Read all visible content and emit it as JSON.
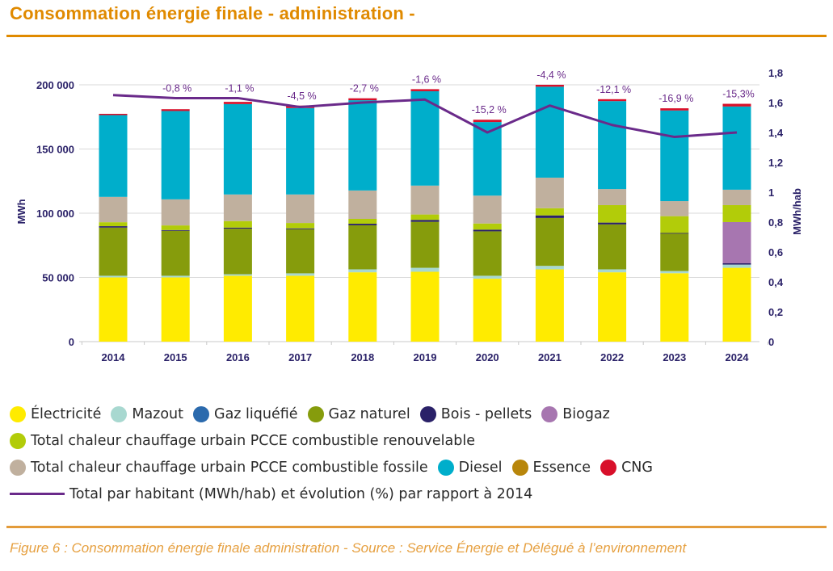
{
  "header": {
    "title": "Consommation énergie finale - administration -"
  },
  "caption": "Figure 6 : Consommation énergie finale administration - Source : Service Énergie et Délégué à l’environnement",
  "chart_data": {
    "type": "bar",
    "stacked": true,
    "title": "Consommation énergie finale - administration -",
    "xlabel": "",
    "ylabel": "MWh",
    "y2label": "MWh/hab",
    "ylim": [
      0,
      200000
    ],
    "y2lim": [
      0,
      1.8
    ],
    "yticks": [
      0,
      50000,
      100000,
      150000,
      200000
    ],
    "ytick_labels": [
      "0",
      "50 000",
      "100 000",
      "150 000",
      "200 000"
    ],
    "y2ticks": [
      0,
      0.2,
      0.4,
      0.6,
      0.8,
      1.0,
      1.2,
      1.4,
      1.6,
      1.8
    ],
    "y2tick_labels": [
      "0",
      "0,2",
      "0,4",
      "0,6",
      "0,8",
      "1",
      "1,2",
      "1,4",
      "1,6",
      "1,8"
    ],
    "grid": true,
    "legend_position": "bottom",
    "categories": [
      "2014",
      "2015",
      "2016",
      "2017",
      "2018",
      "2019",
      "2020",
      "2021",
      "2022",
      "2023",
      "2024"
    ],
    "series": [
      {
        "name": "Électricité",
        "color": "#ffeb00",
        "values": [
          50000,
          50000,
          51300,
          51300,
          54000,
          54400,
          49000,
          56300,
          54000,
          53300,
          57500
        ]
      },
      {
        "name": "Mazout",
        "color": "#a8d8d0",
        "values": [
          1300,
          1300,
          1200,
          1900,
          2300,
          3100,
          2300,
          2700,
          2300,
          1700,
          2500
        ]
      },
      {
        "name": "Gaz liquéfié",
        "color": "#2b6aad",
        "values": [
          0,
          0,
          0,
          0,
          0,
          0,
          0,
          0,
          0,
          0,
          0
        ]
      },
      {
        "name": "Gaz naturel",
        "color": "#869c0c",
        "values": [
          37500,
          35000,
          35500,
          34300,
          34300,
          35800,
          34600,
          37300,
          35000,
          29200,
          0
        ]
      },
      {
        "name": "Bois - pellets",
        "color": "#2a2168",
        "values": [
          1100,
          600,
          800,
          700,
          1200,
          1500,
          1300,
          2000,
          1400,
          400,
          1000
        ]
      },
      {
        "name": "Biogaz",
        "color": "#a776b0",
        "values": [
          0,
          0,
          0,
          0,
          0,
          0,
          0,
          0,
          0,
          0,
          32100
        ]
      },
      {
        "name": "Total chaleur chauffage urbain PCCE combustible renouvelable",
        "color": "#b2cc09",
        "values": [
          3100,
          3600,
          5100,
          4200,
          3800,
          4200,
          4800,
          5600,
          13600,
          13100,
          13200
        ]
      },
      {
        "name": "Total chaleur chauffage urbain PCCE combustible fossile",
        "color": "#c0b09e",
        "values": [
          19700,
          20300,
          20700,
          22200,
          22100,
          22500,
          21700,
          23800,
          12500,
          11700,
          12000
        ]
      },
      {
        "name": "Diesel",
        "color": "#00aecb",
        "values": [
          63700,
          68800,
          70400,
          67300,
          70300,
          73500,
          57300,
          70800,
          68500,
          70600,
          64800
        ]
      },
      {
        "name": "Essence",
        "color": "#b8860b",
        "values": [
          0,
          0,
          0,
          0,
          0,
          0,
          0,
          0,
          0,
          0,
          0
        ]
      },
      {
        "name": "CNG",
        "color": "#d8102a",
        "values": [
          1000,
          1400,
          1700,
          1900,
          1500,
          1600,
          1800,
          1500,
          1500,
          1700,
          2100
        ]
      }
    ],
    "line": {
      "name": "Total par habitant (MWh/hab) et évolution (%) par rapport à 2014",
      "color": "#6a2a8a",
      "axis": "right",
      "values": [
        1.65,
        1.63,
        1.63,
        1.57,
        1.6,
        1.62,
        1.4,
        1.58,
        1.45,
        1.37,
        1.4
      ],
      "annotations": [
        "",
        "-0,8 %",
        "-1,1 %",
        "-4,5 %",
        "-2,7 %",
        "-1,6 %",
        "-15,2 %",
        "-4,4 %",
        "-12,1 %",
        "-16,9 %",
        "-15,3%"
      ]
    }
  },
  "legend": {
    "rows": [
      [
        0,
        1,
        2,
        3,
        4,
        5
      ],
      [
        6
      ],
      [
        7,
        8,
        9,
        10
      ]
    ],
    "line_label": "Total par habitant (MWh/hab) et évolution (%) par rapport à 2014"
  },
  "colors": {
    "accent": "#e08a00",
    "axis_text": "#2a2168",
    "grid": "#d9d9d9"
  }
}
